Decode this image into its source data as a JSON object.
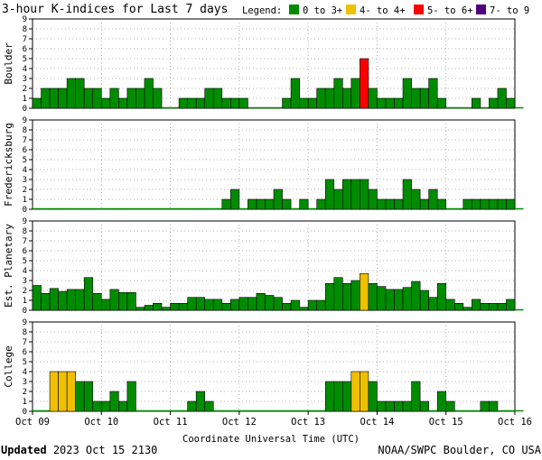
{
  "chart_data": {
    "type": "bar",
    "title": "3-hour K-indices for Last 7 days",
    "legend": {
      "label": "Legend:",
      "entries": [
        {
          "label": "0 to 3+",
          "color": "#008c00"
        },
        {
          "label": "4- to 4+",
          "color": "#f0c000"
        },
        {
          "label": "5- to 6+",
          "color": "#ff0000"
        },
        {
          "label": "7- to 9",
          "color": "#50007f"
        }
      ]
    },
    "xlabel": "Coordinate Universal Time (UTC)",
    "x_ticks": [
      "Oct 09",
      "Oct 10",
      "Oct 11",
      "Oct 12",
      "Oct 13",
      "Oct 14",
      "Oct 15",
      "Oct 16"
    ],
    "ylim": [
      0,
      9
    ],
    "y_ticks": [
      "0",
      "1",
      "2",
      "3",
      "4",
      "5",
      "6",
      "7",
      "8",
      "9"
    ],
    "grid": true,
    "panels": [
      {
        "name": "Boulder",
        "values": [
          1,
          2,
          2,
          2,
          3,
          3,
          2,
          2,
          1,
          2,
          1,
          2,
          2,
          3,
          2,
          0,
          0,
          1,
          1,
          1,
          2,
          2,
          1,
          1,
          1,
          0,
          0,
          0,
          0,
          1,
          3,
          1,
          1,
          2,
          2,
          3,
          2,
          3,
          5,
          2,
          1,
          1,
          1,
          3,
          2,
          2,
          3,
          1,
          0,
          0,
          0,
          1,
          0,
          1,
          2,
          1,
          0
        ]
      },
      {
        "name": "Fredericksburg",
        "values": [
          0,
          0,
          0,
          0,
          0,
          0,
          0,
          0,
          0,
          0,
          0,
          0,
          0,
          0,
          0,
          0,
          0,
          0,
          0,
          0,
          0,
          0,
          1,
          2,
          0,
          1,
          1,
          1,
          2,
          1,
          0,
          1,
          0,
          1,
          3,
          2,
          3,
          3,
          3,
          2,
          1,
          1,
          1,
          3,
          2,
          1,
          2,
          1,
          0,
          0,
          1,
          1,
          1,
          1,
          1,
          1,
          0
        ]
      },
      {
        "name": "Est. Planetary",
        "values": [
          2.5,
          1.7,
          2.2,
          1.9,
          2.1,
          2.1,
          3.3,
          1.7,
          1.1,
          2.1,
          1.8,
          1.8,
          0.3,
          0.5,
          0.7,
          0.3,
          0.7,
          0.7,
          1.3,
          1.3,
          1.1,
          1.1,
          0.7,
          1.1,
          1.3,
          1.3,
          1.7,
          1.5,
          1.3,
          0.7,
          1.0,
          0.3,
          1.0,
          1.0,
          2.7,
          3.3,
          2.7,
          3.0,
          3.7,
          2.7,
          2.4,
          2.1,
          2.1,
          2.3,
          2.9,
          2.0,
          1.3,
          2.7,
          1.1,
          0.7,
          0.3,
          1.1,
          0.7,
          0.7,
          0.7,
          1.1,
          0
        ]
      },
      {
        "name": "College",
        "values": [
          0,
          0,
          4,
          4,
          4,
          3,
          3,
          1,
          1,
          2,
          1,
          3,
          0,
          0,
          0,
          0,
          0,
          0,
          1,
          2,
          1,
          0,
          0,
          0,
          0,
          0,
          0,
          0,
          0,
          0,
          0,
          0,
          0,
          0,
          3,
          3,
          3,
          4,
          4,
          3,
          1,
          1,
          1,
          1,
          3,
          1,
          0,
          2,
          1,
          0,
          0,
          0,
          1,
          1,
          0,
          0,
          0
        ]
      }
    ]
  },
  "footer": {
    "updated_label": "Updated",
    "updated_value": "2023 Oct 15 2130",
    "credit": "NOAA/SWPC Boulder, CO USA"
  }
}
